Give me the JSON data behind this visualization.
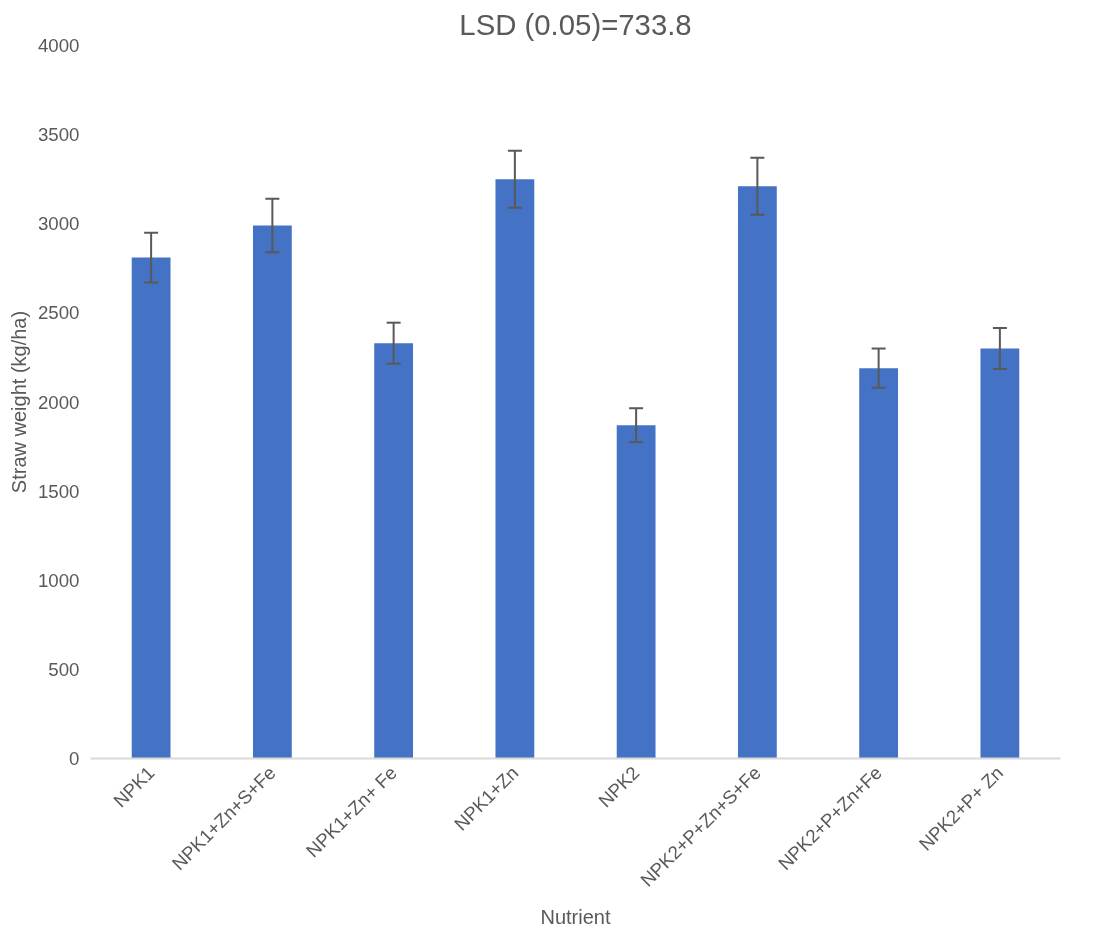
{
  "chart_data": {
    "type": "bar",
    "title": "LSD (0.05)=733.8",
    "xlabel": "Nutrient",
    "ylabel": "Straw weight (kg/ha)",
    "categories": [
      "NPK1",
      "NPK1+Zn+S+Fe",
      "NPK1+Zn+ Fe",
      "NPK1+Zn",
      "NPK2",
      "NPK2+P+Zn+S+Fe",
      "NPK2+P+Zn+Fe",
      "NPK2+P+ Zn"
    ],
    "values": [
      2810,
      2990,
      2330,
      3250,
      1870,
      3210,
      2190,
      2300
    ],
    "errors": [
      140,
      150,
      115,
      160,
      95,
      160,
      110,
      115
    ],
    "color": "#4472c4",
    "ylim": [
      0,
      4000
    ],
    "yticks": [
      0,
      500,
      1000,
      1500,
      2000,
      2500,
      3000,
      3500,
      4000
    ],
    "grid": false
  }
}
